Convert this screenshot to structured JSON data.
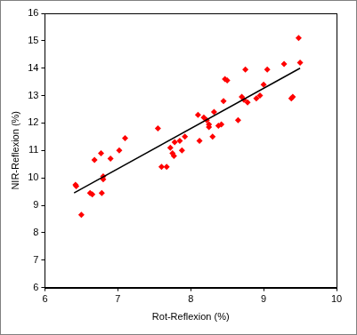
{
  "chart_data": {
    "type": "scatter",
    "x_label": "Rot-Reflexion (%)",
    "y_label": "NIR-Reflexion (%)",
    "xlim": [
      6,
      10
    ],
    "xticks": [
      6,
      7,
      8,
      9,
      10
    ],
    "ylim": [
      6,
      16
    ],
    "yticks": [
      6,
      7,
      8,
      9,
      10,
      11,
      12,
      13,
      14,
      15,
      16
    ],
    "grid": false,
    "series": [
      {
        "type": "scatter",
        "color": "#ff0000",
        "marker": "diamond",
        "x": [
          6.42,
          6.43,
          6.5,
          6.62,
          6.65,
          6.68,
          6.77,
          6.78,
          6.8,
          6.8,
          6.9,
          7.02,
          7.1,
          7.55,
          7.6,
          7.67,
          7.72,
          7.75,
          7.77,
          7.78,
          7.85,
          7.88,
          7.92,
          8.1,
          8.12,
          8.18,
          8.22,
          8.25,
          8.25,
          8.3,
          8.32,
          8.38,
          8.42,
          8.45,
          8.47,
          8.5,
          8.65,
          8.7,
          8.73,
          8.75,
          8.78,
          8.9,
          8.95,
          9.0,
          9.05,
          9.28,
          9.38,
          9.4,
          9.48,
          9.5
        ],
        "values": [
          9.75,
          9.7,
          8.65,
          9.45,
          9.4,
          10.65,
          10.9,
          9.45,
          10.05,
          9.95,
          10.7,
          11.0,
          11.45,
          11.8,
          10.4,
          10.4,
          11.1,
          10.9,
          10.8,
          11.3,
          11.35,
          11.0,
          11.5,
          12.3,
          11.35,
          12.2,
          12.1,
          11.95,
          11.85,
          11.5,
          12.4,
          11.9,
          11.95,
          12.8,
          13.6,
          13.55,
          12.1,
          12.95,
          12.85,
          13.95,
          12.75,
          12.9,
          13.0,
          13.4,
          13.95,
          14.15,
          12.9,
          12.95,
          15.1,
          14.2
        ]
      },
      {
        "type": "line",
        "color": "#000000",
        "line_style": "solid",
        "x": [
          6.4,
          9.5
        ],
        "values": [
          9.45,
          14.0
        ]
      }
    ]
  }
}
